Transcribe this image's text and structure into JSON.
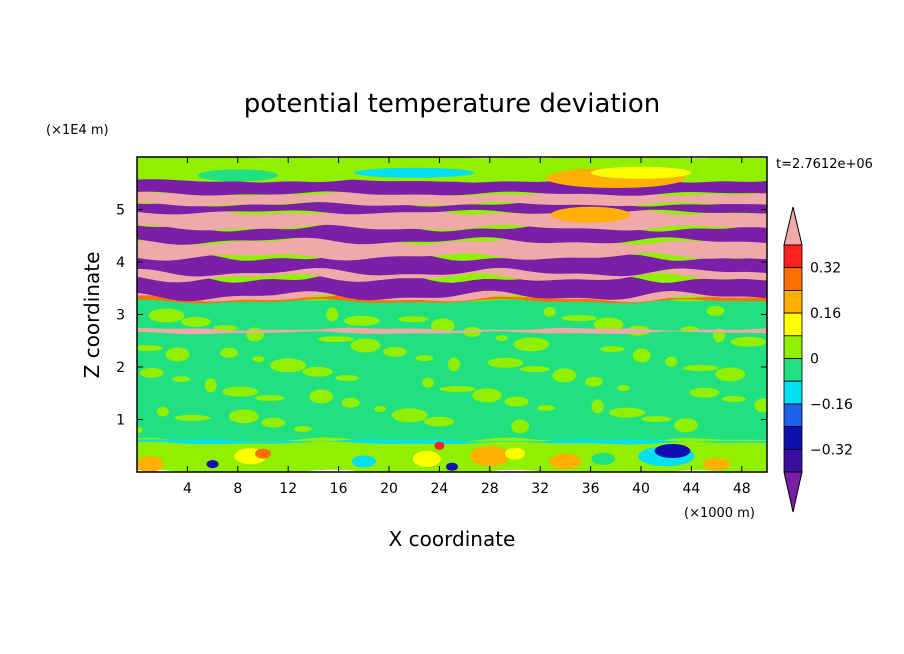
{
  "chart_data": {
    "type": "heatmap",
    "title": "potential temperature deviation",
    "xlabel": "X coordinate",
    "ylabel": "Z coordinate",
    "x_unit": "(×1000 m)",
    "y_unit": "(×1E4 m)",
    "time_label": "t=2.7612e+06",
    "xlim": [
      0,
      50
    ],
    "ylim": [
      0,
      6
    ],
    "xticks": [
      4,
      8,
      12,
      16,
      20,
      24,
      28,
      32,
      36,
      40,
      44,
      48
    ],
    "yticks": [
      1,
      2,
      3,
      4,
      5
    ],
    "colorbar": {
      "levels": [
        -0.48,
        -0.4,
        -0.32,
        -0.24,
        -0.16,
        -0.08,
        0,
        0.08,
        0.16,
        0.24,
        0.32,
        0.4
      ],
      "tick_values": [
        -0.32,
        -0.16,
        0,
        0.16,
        0.32
      ],
      "tick_labels": [
        "−0.32",
        "−0.16",
        "0",
        "0.16",
        "0.32"
      ],
      "colors": [
        "#7a1fa8",
        "#3a0fa0",
        "#1010b0",
        "#1f60e8",
        "#00e0f0",
        "#20e080",
        "#90f000",
        "#ffff00",
        "#ffb000",
        "#ff7000",
        "#ff2020",
        "#f0a8a8"
      ],
      "extend": "both"
    },
    "bands": [
      {
        "z_min": 0.0,
        "z_max": 0.55,
        "level": "mixed, mostly 0 to 0.08 with patches from -0.40 to 0.32"
      },
      {
        "z_min": 0.55,
        "z_max": 3.3,
        "level": "-0.08 to 0.08"
      },
      {
        "z_min": 3.3,
        "z_max": 5.3,
        "level": "alternating layers, −0.48 and ≥ 0.40"
      },
      {
        "z_min": 5.3,
        "z_max": 6.0,
        "level": "-0.08 to 0.24"
      }
    ]
  }
}
